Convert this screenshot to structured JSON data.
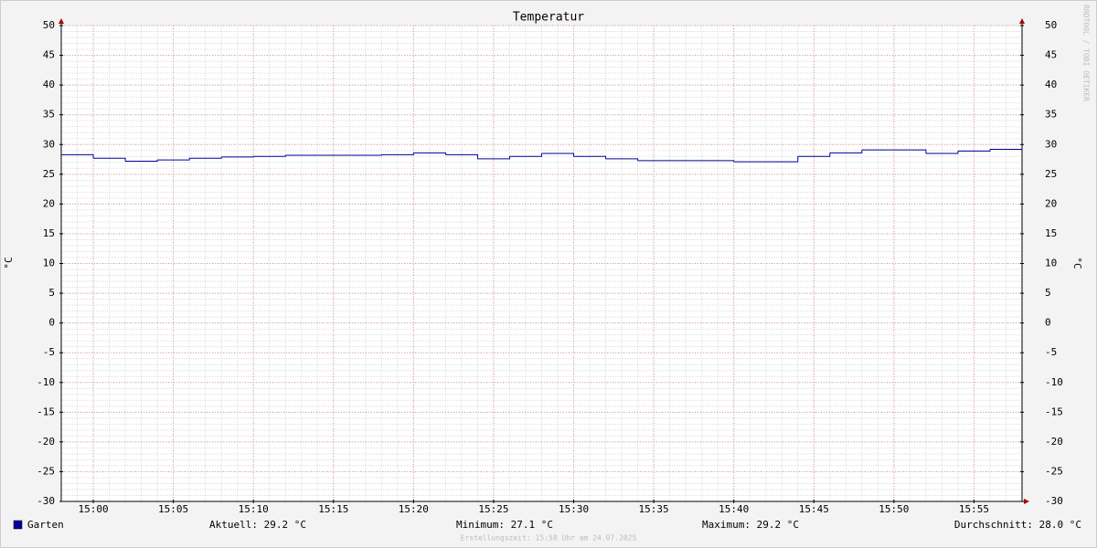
{
  "chart_data": {
    "type": "line",
    "title": "Temperatur",
    "y_label": "°C",
    "y2_label": "°C",
    "x": [
      "14:58",
      "15:00",
      "15:02",
      "15:04",
      "15:06",
      "15:08",
      "15:10",
      "15:12",
      "15:14",
      "15:16",
      "15:18",
      "15:20",
      "15:22",
      "15:24",
      "15:26",
      "15:28",
      "15:30",
      "15:32",
      "15:34",
      "15:36",
      "15:38",
      "15:40",
      "15:42",
      "15:44",
      "15:46",
      "15:48",
      "15:50",
      "15:52",
      "15:54",
      "15:56"
    ],
    "series": [
      {
        "name": "Garten",
        "color": "#000099",
        "values": [
          28.3,
          27.7,
          27.2,
          27.4,
          27.7,
          27.9,
          28.0,
          28.2,
          28.2,
          28.2,
          28.3,
          28.6,
          28.3,
          27.6,
          28.0,
          28.5,
          28.0,
          27.6,
          27.3,
          27.3,
          27.3,
          27.1,
          27.1,
          28.0,
          28.6,
          29.1,
          29.1,
          28.5,
          28.9,
          29.2
        ]
      }
    ],
    "xlim": [
      "14:58",
      "15:58"
    ],
    "xticks": [
      "15:00",
      "15:05",
      "15:10",
      "15:15",
      "15:20",
      "15:25",
      "15:30",
      "15:35",
      "15:40",
      "15:45",
      "15:50",
      "15:55"
    ],
    "ylim": [
      -30,
      50
    ],
    "yticks": [
      -30,
      -25,
      -20,
      -15,
      -10,
      -5,
      0,
      5,
      10,
      15,
      20,
      25,
      30,
      35,
      40,
      45,
      50
    ],
    "y2lim": [
      -30,
      50
    ],
    "y2ticks": [
      -30,
      -25,
      -20,
      -15,
      -10,
      -5,
      0,
      5,
      10,
      15,
      20,
      25,
      30,
      35,
      40,
      45,
      50
    ],
    "grid": true,
    "step": true,
    "stats": [
      "Aktuell: 29.2 °C",
      "Minimum: 27.1 °C",
      "Maximum: 29.2 °C",
      "Durchschnitt: 28.0 °C"
    ],
    "footer": "Erstellungszeit: 15:58 Uhr am 24.07.2025",
    "watermark": "RRDTOOL / TOBI OETIKER"
  }
}
